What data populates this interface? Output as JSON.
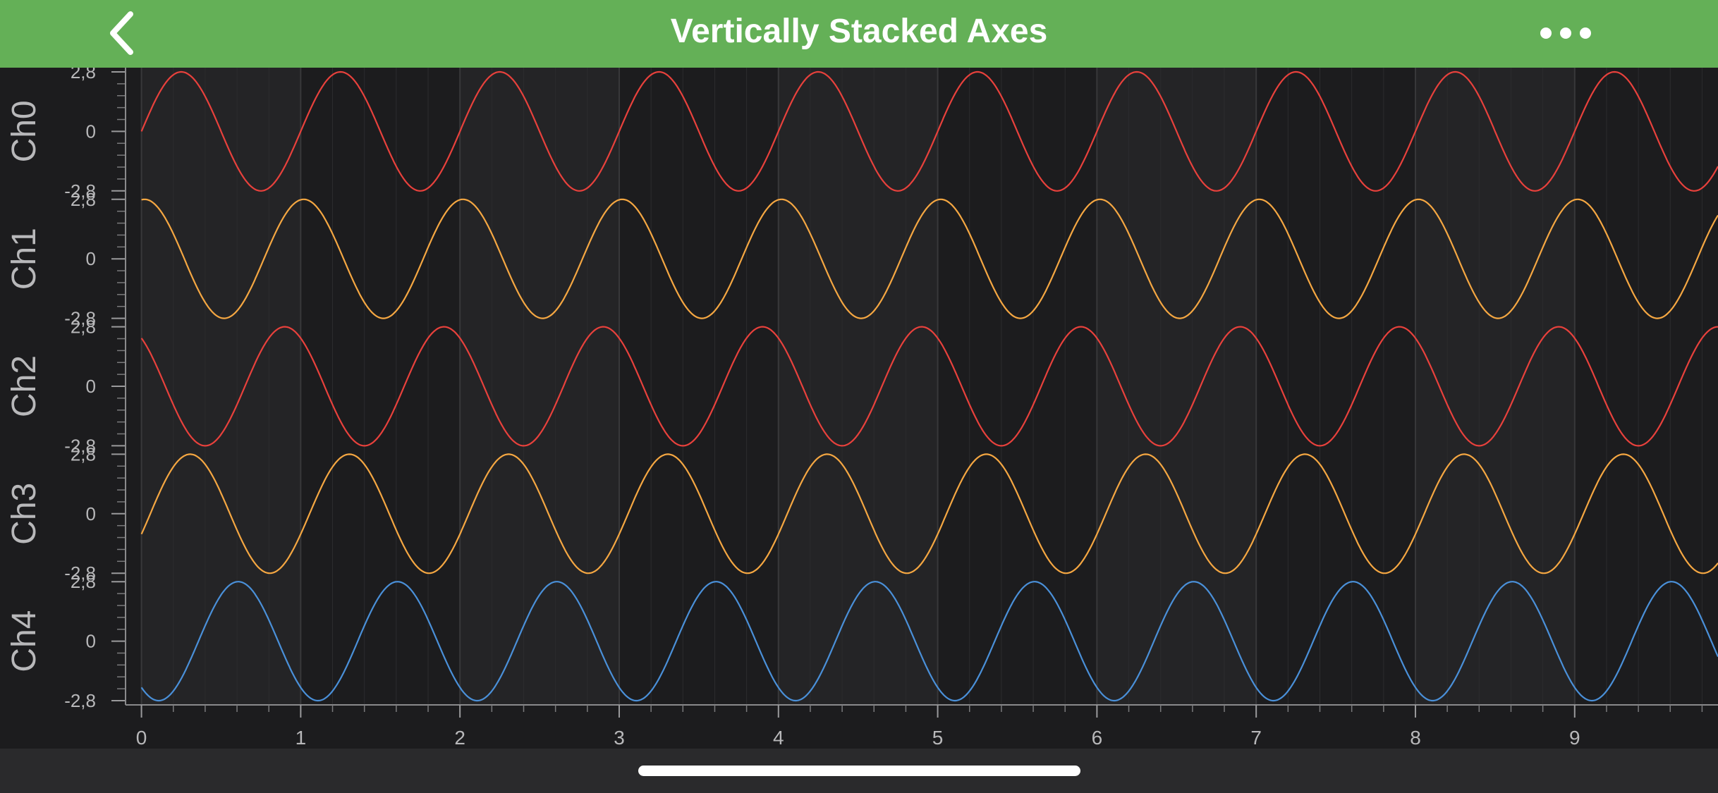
{
  "header": {
    "title": "Vertically Stacked Axes",
    "back_icon": "chevron-left-icon",
    "more_icon": "ellipsis-icon",
    "background_color": "#64b057"
  },
  "chart_data": {
    "type": "line",
    "title": "",
    "x_axis": {
      "range": [
        -0.1,
        9.9
      ],
      "ticks": [
        0,
        1,
        2,
        3,
        4,
        5,
        6,
        7,
        8,
        9
      ],
      "tick_labels": [
        "0",
        "1",
        "2",
        "3",
        "4",
        "5",
        "6",
        "7",
        "8",
        "9"
      ],
      "label": ""
    },
    "y_axes": [
      {
        "label": "Ch0",
        "range": [
          -2.8,
          2.8
        ],
        "tick_labels": [
          "2,8",
          "0",
          "-2,8"
        ]
      },
      {
        "label": "Ch1",
        "range": [
          -2.8,
          2.8
        ],
        "tick_labels": [
          "2,8",
          "0",
          "-2,8"
        ]
      },
      {
        "label": "Ch2",
        "range": [
          -2.8,
          2.8
        ],
        "tick_labels": [
          "2,8",
          "0",
          "-2,8"
        ]
      },
      {
        "label": "Ch3",
        "range": [
          -2.8,
          2.8
        ],
        "tick_labels": [
          "2,8",
          "0",
          "-2,8"
        ]
      },
      {
        "label": "Ch4",
        "range": [
          -2.8,
          2.8
        ],
        "tick_labels": [
          "2,8",
          "0",
          "-2,8"
        ]
      }
    ],
    "series": [
      {
        "axis": "Ch0",
        "color": "#e8413c",
        "amplitude": 2.8,
        "period": 1.0,
        "phase": 0.0,
        "x_start": 0,
        "x_end": 9.9
      },
      {
        "axis": "Ch1",
        "color": "#f5a742",
        "amplitude": 2.8,
        "period": 1.0,
        "phase": 1.45,
        "x_start": 0,
        "x_end": 9.9
      },
      {
        "axis": "Ch2",
        "color": "#e8413c",
        "amplitude": 2.8,
        "period": 1.0,
        "phase": 2.2,
        "x_start": 0,
        "x_end": 9.9
      },
      {
        "axis": "Ch3",
        "color": "#f5a742",
        "amplitude": 2.8,
        "period": 1.0,
        "phase": -0.35,
        "x_start": 0,
        "x_end": 9.9
      },
      {
        "axis": "Ch4",
        "color": "#4a90d9",
        "amplitude": 2.8,
        "period": 1.0,
        "phase": -2.25,
        "x_start": 0,
        "x_end": 9.9
      }
    ],
    "grid": true,
    "background_color": "#1c1c1e",
    "band_color": "#242426"
  }
}
